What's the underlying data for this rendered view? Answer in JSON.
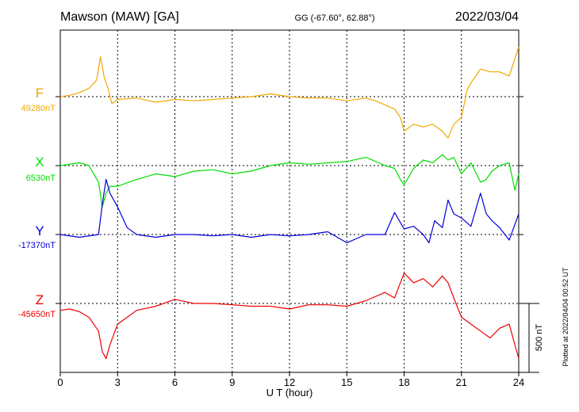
{
  "header": {
    "station": "Mawson (MAW)  [GA]",
    "coords": "GG (-67.60°,  62.88°)",
    "date": "2022/03/04"
  },
  "side_note": "Plotted at 2022/04/04 00:52 UT",
  "scale_label": "500 nT",
  "colors": {
    "F": "#f0a800",
    "X": "#00dd00",
    "Y": "#0000dd",
    "Z": "#ee0000",
    "grid": "#000000"
  },
  "chart_data": {
    "type": "line",
    "xlabel": "U T (hour)",
    "xlim": [
      0,
      24
    ],
    "x_ticks": [
      "0",
      "3",
      "6",
      "9",
      "12",
      "15",
      "18",
      "21",
      "24"
    ],
    "grid": true,
    "scale_nT": 500,
    "series": [
      {
        "key": "F",
        "name": "F",
        "baseline_label": "49280nT",
        "x": [
          0,
          0.5,
          1,
          1.5,
          1.9,
          2.1,
          2.3,
          2.5,
          2.7,
          3,
          4,
          5,
          6,
          7,
          8,
          9,
          10,
          11,
          12,
          13,
          14,
          15,
          16,
          16.5,
          17,
          17.5,
          17.8,
          18,
          18.5,
          19,
          19.5,
          20,
          20.3,
          20.6,
          21,
          21.3,
          21.5,
          22,
          22.5,
          23,
          23.5,
          24
        ],
        "y": [
          0,
          10,
          30,
          60,
          120,
          290,
          140,
          60,
          -50,
          -20,
          -10,
          -40,
          -20,
          -30,
          -20,
          -10,
          0,
          20,
          0,
          -10,
          -10,
          -30,
          -10,
          -30,
          -60,
          -90,
          -150,
          -250,
          -200,
          -220,
          -200,
          -250,
          -300,
          -200,
          -150,
          50,
          100,
          200,
          180,
          180,
          150,
          360
        ]
      },
      {
        "key": "X",
        "name": "X",
        "baseline_label": "6530nT",
        "x": [
          0,
          1,
          1.5,
          2,
          2.2,
          2.4,
          2.6,
          3,
          4,
          5,
          6,
          7,
          8,
          9,
          10,
          11,
          12,
          13,
          14,
          15,
          16,
          17,
          17.5,
          17.8,
          18,
          18.5,
          19,
          19.5,
          20,
          20.3,
          20.6,
          21,
          21.5,
          22,
          22.3,
          22.6,
          23,
          23.5,
          23.8,
          24
        ],
        "y": [
          0,
          20,
          0,
          -120,
          -300,
          -200,
          -150,
          -150,
          -100,
          -60,
          -80,
          -40,
          -30,
          -60,
          -40,
          0,
          20,
          10,
          20,
          30,
          60,
          0,
          -20,
          -100,
          -140,
          -20,
          40,
          20,
          80,
          40,
          60,
          -60,
          20,
          -120,
          -100,
          -40,
          0,
          20,
          -180,
          -60
        ]
      },
      {
        "key": "Y",
        "name": "Y",
        "baseline_label": "-17370nT",
        "x": [
          0,
          1,
          2,
          2.2,
          2.4,
          2.6,
          3,
          3.5,
          4,
          5,
          6,
          7,
          8,
          9,
          10,
          11,
          12,
          13,
          14,
          15,
          16,
          17,
          17.5,
          18,
          18.5,
          19,
          19.3,
          19.6,
          20,
          20.3,
          20.6,
          21,
          21.5,
          22,
          22.3,
          22.6,
          23,
          23.5,
          24
        ],
        "y": [
          0,
          -20,
          0,
          220,
          400,
          300,
          200,
          50,
          0,
          -20,
          0,
          0,
          -10,
          0,
          -20,
          0,
          -10,
          0,
          20,
          -60,
          0,
          0,
          160,
          40,
          60,
          0,
          -60,
          100,
          50,
          250,
          150,
          120,
          60,
          300,
          150,
          100,
          50,
          -40,
          150
        ]
      },
      {
        "key": "Z",
        "name": "Z",
        "baseline_label": "-45650nT",
        "x": [
          0,
          0.5,
          1,
          1.5,
          2,
          2.2,
          2.4,
          2.6,
          3,
          3.5,
          4,
          5,
          6,
          7,
          8,
          9,
          10,
          11,
          12,
          13,
          14,
          15,
          16,
          17,
          17.5,
          18,
          18.5,
          19,
          19.5,
          20,
          20.3,
          20.6,
          21,
          21.5,
          22,
          22.5,
          23,
          23.5,
          24
        ],
        "y": [
          -50,
          -40,
          -60,
          -100,
          -200,
          -350,
          -400,
          -300,
          -150,
          -100,
          -50,
          -20,
          30,
          0,
          0,
          -10,
          -20,
          -20,
          -40,
          -10,
          -10,
          -20,
          20,
          80,
          40,
          220,
          150,
          180,
          120,
          200,
          150,
          40,
          -100,
          -150,
          -200,
          -250,
          -180,
          -150,
          -400
        ]
      }
    ]
  }
}
